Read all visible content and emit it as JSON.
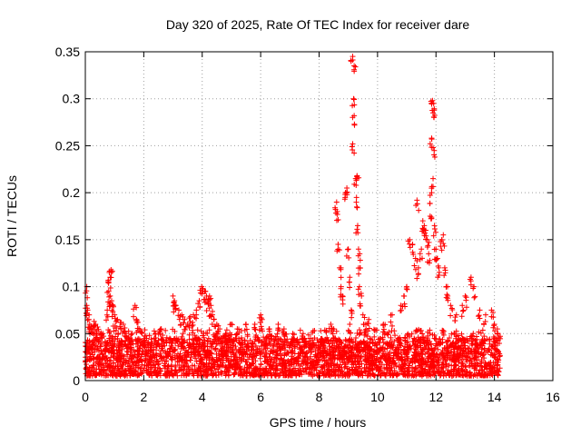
{
  "chart_data": {
    "type": "scatter",
    "title": "Day 320 of 2025, Rate Of TEC Index for receiver dare",
    "xlabel": "GPS time / hours",
    "ylabel": "ROTI / TECUs",
    "xlim": [
      0,
      16
    ],
    "ylim": [
      0,
      0.35
    ],
    "x_ticks": [
      "0",
      "2",
      "4",
      "6",
      "8",
      "10",
      "12",
      "14",
      "16"
    ],
    "y_ticks": [
      "0",
      "0.05",
      "0.1",
      "0.15",
      "0.2",
      "0.25",
      "0.3",
      "0.35"
    ],
    "grid": true,
    "marker": "+",
    "series": [
      {
        "name": "ROTI",
        "color": "#ff0000",
        "background_x_range": [
          0,
          14.2
        ],
        "background_y_range": [
          0.005,
          0.045
        ],
        "points": [
          [
            0.05,
            0.1
          ],
          [
            0.05,
            0.08
          ],
          [
            0.08,
            0.075
          ],
          [
            0.12,
            0.065
          ],
          [
            0.15,
            0.06
          ],
          [
            0.2,
            0.058
          ],
          [
            0.3,
            0.063
          ],
          [
            0.35,
            0.06
          ],
          [
            0.42,
            0.057
          ],
          [
            0.5,
            0.05
          ],
          [
            0.6,
            0.05
          ],
          [
            0.82,
            0.115
          ],
          [
            0.85,
            0.11
          ],
          [
            0.88,
            0.118
          ],
          [
            0.8,
            0.095
          ],
          [
            0.85,
            0.09
          ],
          [
            0.9,
            0.085
          ],
          [
            0.75,
            0.075
          ],
          [
            0.95,
            0.08
          ],
          [
            1.0,
            0.07
          ],
          [
            1.1,
            0.065
          ],
          [
            1.2,
            0.062
          ],
          [
            1.3,
            0.06
          ],
          [
            1.4,
            0.05
          ],
          [
            1.6,
            0.05
          ],
          [
            1.7,
            0.08
          ],
          [
            1.75,
            0.065
          ],
          [
            1.8,
            0.062
          ],
          [
            1.9,
            0.052
          ],
          [
            2.1,
            0.045
          ],
          [
            2.4,
            0.05
          ],
          [
            2.6,
            0.055
          ],
          [
            3.0,
            0.09
          ],
          [
            3.05,
            0.085
          ],
          [
            3.1,
            0.08
          ],
          [
            3.2,
            0.075
          ],
          [
            3.3,
            0.07
          ],
          [
            3.4,
            0.065
          ],
          [
            3.5,
            0.06
          ],
          [
            3.6,
            0.068
          ],
          [
            3.7,
            0.07
          ],
          [
            3.8,
            0.075
          ],
          [
            3.9,
            0.085
          ],
          [
            3.98,
            0.1
          ],
          [
            4.02,
            0.098
          ],
          [
            4.1,
            0.095
          ],
          [
            4.15,
            0.09
          ],
          [
            4.2,
            0.085
          ],
          [
            4.25,
            0.09
          ],
          [
            4.3,
            0.08
          ],
          [
            4.35,
            0.07
          ],
          [
            4.4,
            0.065
          ],
          [
            4.5,
            0.06
          ],
          [
            4.6,
            0.055
          ],
          [
            4.8,
            0.05
          ],
          [
            5.0,
            0.06
          ],
          [
            5.2,
            0.055
          ],
          [
            5.5,
            0.06
          ],
          [
            5.8,
            0.06
          ],
          [
            6.0,
            0.07
          ],
          [
            6.05,
            0.065
          ],
          [
            6.3,
            0.055
          ],
          [
            6.6,
            0.06
          ],
          [
            6.8,
            0.055
          ],
          [
            7.1,
            0.05
          ],
          [
            7.5,
            0.045
          ],
          [
            7.8,
            0.04
          ],
          [
            8.2,
            0.04
          ],
          [
            8.4,
            0.06
          ],
          [
            8.5,
            0.055
          ],
          [
            8.6,
            0.19
          ],
          [
            8.62,
            0.18
          ],
          [
            8.65,
            0.145
          ],
          [
            8.7,
            0.12
          ],
          [
            8.75,
            0.1
          ],
          [
            8.8,
            0.09
          ],
          [
            8.9,
            0.2
          ],
          [
            8.95,
            0.205
          ],
          [
            9.0,
            0.14
          ],
          [
            9.05,
            0.11
          ],
          [
            9.1,
            0.075
          ],
          [
            9.05,
            0.06
          ],
          [
            9.15,
            0.345
          ],
          [
            9.2,
            0.335
          ],
          [
            9.18,
            0.3
          ],
          [
            9.2,
            0.282
          ],
          [
            9.15,
            0.252
          ],
          [
            9.25,
            0.215
          ],
          [
            9.3,
            0.218
          ],
          [
            9.28,
            0.195
          ],
          [
            9.32,
            0.165
          ],
          [
            9.35,
            0.14
          ],
          [
            9.4,
            0.12
          ],
          [
            9.38,
            0.1
          ],
          [
            9.45,
            0.09
          ],
          [
            9.5,
            0.07
          ],
          [
            9.6,
            0.06
          ],
          [
            9.7,
            0.065
          ],
          [
            10.2,
            0.06
          ],
          [
            10.5,
            0.07
          ],
          [
            10.8,
            0.08
          ],
          [
            10.9,
            0.09
          ],
          [
            11.0,
            0.1
          ],
          [
            11.1,
            0.15
          ],
          [
            11.2,
            0.145
          ],
          [
            11.3,
            0.13
          ],
          [
            11.35,
            0.192
          ],
          [
            11.4,
            0.12
          ],
          [
            11.5,
            0.14
          ],
          [
            11.55,
            0.17
          ],
          [
            11.6,
            0.165
          ],
          [
            11.65,
            0.16
          ],
          [
            11.7,
            0.15
          ],
          [
            11.75,
            0.135
          ],
          [
            11.8,
            0.175
          ],
          [
            11.85,
            0.2
          ],
          [
            11.9,
            0.215
          ],
          [
            11.88,
            0.298
          ],
          [
            11.92,
            0.295
          ],
          [
            11.9,
            0.285
          ],
          [
            11.85,
            0.258
          ],
          [
            11.9,
            0.248
          ],
          [
            11.95,
            0.165
          ],
          [
            12.0,
            0.14
          ],
          [
            12.05,
            0.13
          ],
          [
            12.1,
            0.12
          ],
          [
            12.2,
            0.15
          ],
          [
            12.25,
            0.155
          ],
          [
            12.3,
            0.12
          ],
          [
            12.35,
            0.1
          ],
          [
            12.4,
            0.09
          ],
          [
            12.5,
            0.08
          ],
          [
            12.7,
            0.07
          ],
          [
            12.9,
            0.08
          ],
          [
            13.0,
            0.09
          ],
          [
            13.2,
            0.11
          ],
          [
            13.3,
            0.1
          ],
          [
            13.5,
            0.075
          ],
          [
            13.7,
            0.07
          ],
          [
            13.9,
            0.075
          ],
          [
            14.0,
            0.06
          ],
          [
            14.1,
            0.055
          ]
        ]
      }
    ]
  }
}
